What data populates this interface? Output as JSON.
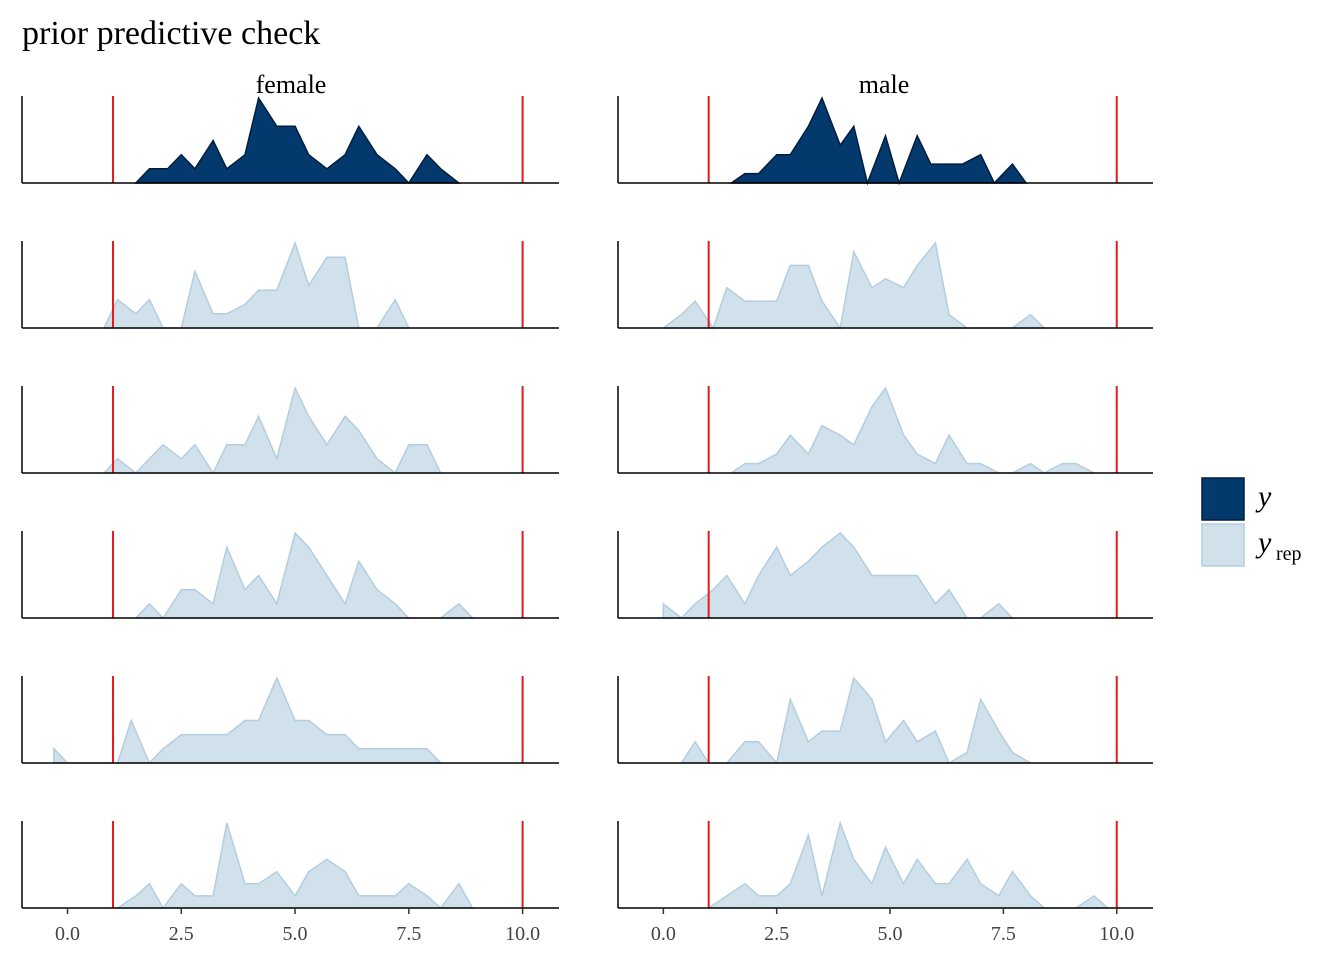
{
  "chart_data": {
    "type": "area",
    "title": "prior predictive check",
    "facets": [
      "female",
      "male"
    ],
    "xlabel": "",
    "ylabel": "",
    "xlim": [
      -1.0,
      10.8
    ],
    "xticks": [
      0.0,
      2.5,
      5.0,
      7.5,
      10.0
    ],
    "xtick_labels": [
      "0.0",
      "2.5",
      "5.0",
      "7.5",
      "10.0"
    ],
    "reference_lines_x": [
      1,
      10
    ],
    "reference_line_color": "#e41a1c",
    "grid": false,
    "legend": {
      "position": "right",
      "entries": [
        {
          "key": "y",
          "label": "y",
          "subscript": "",
          "color": "#03396c",
          "edge": "#011f3d"
        },
        {
          "key": "yrep",
          "label": "y",
          "subscript": "rep",
          "color": "#d1e1ec",
          "edge": "#b3cde0"
        }
      ]
    },
    "panels": [
      {
        "facet": "female",
        "row": 0,
        "series": "y",
        "x": [
          1.5,
          1.8,
          2.2,
          2.5,
          2.8,
          3.2,
          3.5,
          3.9,
          4.2,
          4.6,
          5.0,
          5.3,
          5.7,
          6.1,
          6.4,
          6.8,
          7.2,
          7.5,
          7.9,
          8.2,
          8.6
        ],
        "y": [
          0,
          1,
          1,
          2,
          1,
          3,
          1,
          2,
          6,
          4,
          4,
          2,
          1,
          2,
          4,
          2,
          1,
          0,
          2,
          1,
          0
        ]
      },
      {
        "facet": "male",
        "row": 0,
        "series": "y",
        "x": [
          1.5,
          1.8,
          2.1,
          2.5,
          2.8,
          3.2,
          3.5,
          3.9,
          4.2,
          4.5,
          4.9,
          5.2,
          5.6,
          5.9,
          6.3,
          6.6,
          7.0,
          7.3,
          7.7,
          8.0
        ],
        "y": [
          0,
          1,
          1,
          3,
          3,
          6,
          9,
          4,
          6,
          0,
          5,
          0,
          5,
          2,
          2,
          2,
          3,
          0,
          2,
          0
        ]
      },
      {
        "facet": "female",
        "row": 1,
        "series": "yrep",
        "x": [
          0.8,
          1.1,
          1.5,
          1.8,
          2.1,
          2.5,
          2.8,
          3.2,
          3.5,
          3.9,
          4.2,
          4.6,
          5.0,
          5.3,
          5.7,
          6.1,
          6.4,
          6.8,
          7.2,
          7.5
        ],
        "y": [
          0,
          3,
          1.5,
          3,
          0,
          0,
          6,
          1.5,
          1.5,
          2.5,
          4,
          4,
          9,
          4.5,
          7.5,
          7.5,
          0,
          0,
          3,
          0
        ]
      },
      {
        "facet": "male",
        "row": 1,
        "series": "yrep",
        "x": [
          0.0,
          0.4,
          0.7,
          1.1,
          1.4,
          1.8,
          2.1,
          2.5,
          2.8,
          3.2,
          3.5,
          3.9,
          4.2,
          4.6,
          4.9,
          5.3,
          5.6,
          6.0,
          6.3,
          6.7,
          7.0,
          7.4,
          7.7,
          8.1,
          8.4
        ],
        "y": [
          0,
          1.5,
          3,
          0,
          4.5,
          3,
          3,
          3,
          7,
          7,
          3,
          0,
          8.5,
          4.5,
          5.5,
          4.5,
          7,
          9.5,
          1.5,
          0,
          0,
          0,
          0,
          1.5,
          0
        ]
      },
      {
        "facet": "female",
        "row": 2,
        "series": "yrep",
        "x": [
          0.8,
          1.1,
          1.5,
          1.8,
          2.1,
          2.5,
          2.8,
          3.2,
          3.5,
          3.9,
          4.2,
          4.6,
          5.0,
          5.3,
          5.7,
          6.1,
          6.4,
          6.8,
          7.2,
          7.5,
          7.9,
          8.2
        ],
        "y": [
          0,
          1,
          0,
          1,
          2,
          1,
          2,
          0,
          2,
          2,
          4,
          1,
          6,
          4,
          2,
          4,
          3,
          1,
          0,
          2,
          2,
          0
        ]
      },
      {
        "facet": "male",
        "row": 2,
        "series": "yrep",
        "x": [
          1.5,
          1.8,
          2.1,
          2.5,
          2.8,
          3.2,
          3.5,
          3.9,
          4.2,
          4.6,
          4.9,
          5.3,
          5.6,
          6.0,
          6.3,
          6.7,
          7.0,
          7.4,
          7.7,
          8.1,
          8.4,
          8.8,
          9.1,
          9.5
        ],
        "y": [
          0,
          1,
          1,
          2,
          4,
          2,
          5,
          4,
          3,
          7,
          9,
          4,
          2,
          1,
          4,
          1,
          1,
          0,
          0,
          1,
          0,
          1,
          1,
          0
        ]
      },
      {
        "facet": "female",
        "row": 3,
        "series": "yrep",
        "x": [
          1.5,
          1.8,
          2.1,
          2.5,
          2.8,
          3.2,
          3.5,
          3.9,
          4.2,
          4.6,
          5.0,
          5.3,
          5.7,
          6.1,
          6.4,
          6.8,
          7.2,
          7.5,
          7.9,
          8.2,
          8.6,
          8.9
        ],
        "y": [
          0,
          1,
          0,
          2,
          2,
          1,
          5,
          2,
          3,
          1,
          6,
          5,
          3,
          1,
          4,
          2,
          1,
          0,
          0,
          0,
          1,
          0
        ]
      },
      {
        "facet": "male",
        "row": 3,
        "series": "yrep",
        "x": [
          0.0,
          0.4,
          0.7,
          1.1,
          1.4,
          1.8,
          2.1,
          2.5,
          2.8,
          3.2,
          3.5,
          3.9,
          4.2,
          4.6,
          4.9,
          5.3,
          5.6,
          6.0,
          6.3,
          6.7,
          7.0,
          7.4,
          7.7
        ],
        "y": [
          0.5,
          0,
          0.5,
          1,
          1.5,
          0.5,
          1.5,
          2.5,
          1.5,
          2,
          2.5,
          3,
          2.5,
          1.5,
          1.5,
          1.5,
          1.5,
          0.5,
          1,
          0,
          0,
          0.5,
          0
        ]
      },
      {
        "facet": "female",
        "row": 4,
        "series": "yrep",
        "x": [
          -0.3,
          0.0,
          1.1,
          1.4,
          1.8,
          2.1,
          2.5,
          2.8,
          3.2,
          3.5,
          3.9,
          4.2,
          4.6,
          5.0,
          5.3,
          5.7,
          6.1,
          6.4,
          6.8,
          7.2,
          7.5,
          7.9,
          8.2
        ],
        "y": [
          1,
          0,
          0,
          3,
          0,
          1,
          2,
          2,
          2,
          2,
          3,
          3,
          6,
          3,
          3,
          2,
          2,
          1,
          1,
          1,
          1,
          1,
          0
        ]
      },
      {
        "facet": "male",
        "row": 4,
        "series": "yrep",
        "x": [
          0.4,
          0.7,
          1.0,
          1.4,
          1.8,
          2.1,
          2.5,
          2.8,
          3.2,
          3.5,
          3.9,
          4.2,
          4.6,
          4.9,
          5.3,
          5.6,
          6.0,
          6.3,
          6.7,
          7.0,
          7.4,
          7.7,
          8.1
        ],
        "y": [
          0,
          2,
          0,
          0,
          2,
          2,
          0,
          6,
          2,
          3,
          3,
          8,
          6,
          2,
          4,
          2,
          3,
          0,
          1,
          6,
          3,
          1,
          0
        ]
      },
      {
        "facet": "female",
        "row": 5,
        "series": "yrep",
        "x": [
          1.1,
          1.5,
          1.8,
          2.1,
          2.5,
          2.8,
          3.2,
          3.5,
          3.9,
          4.2,
          4.6,
          5.0,
          5.3,
          5.7,
          6.1,
          6.4,
          6.8,
          7.2,
          7.5,
          7.9,
          8.2,
          8.6,
          8.9
        ],
        "y": [
          0,
          1,
          2,
          0,
          2,
          1,
          1,
          7,
          2,
          2,
          3,
          1,
          3,
          4,
          3,
          1,
          1,
          1,
          2,
          1,
          0,
          2,
          0
        ]
      },
      {
        "facet": "male",
        "row": 5,
        "series": "yrep",
        "x": [
          1.0,
          1.4,
          1.8,
          2.1,
          2.5,
          2.8,
          3.2,
          3.5,
          3.9,
          4.2,
          4.6,
          4.9,
          5.3,
          5.6,
          6.0,
          6.3,
          6.7,
          7.0,
          7.4,
          7.7,
          8.1,
          8.4,
          8.8,
          9.1,
          9.5,
          9.8
        ],
        "y": [
          0,
          1,
          2,
          1,
          1,
          2,
          6,
          1,
          7,
          4,
          2,
          5,
          2,
          4,
          2,
          2,
          4,
          2,
          1,
          3,
          1,
          0,
          0,
          0,
          1,
          0
        ]
      }
    ]
  }
}
